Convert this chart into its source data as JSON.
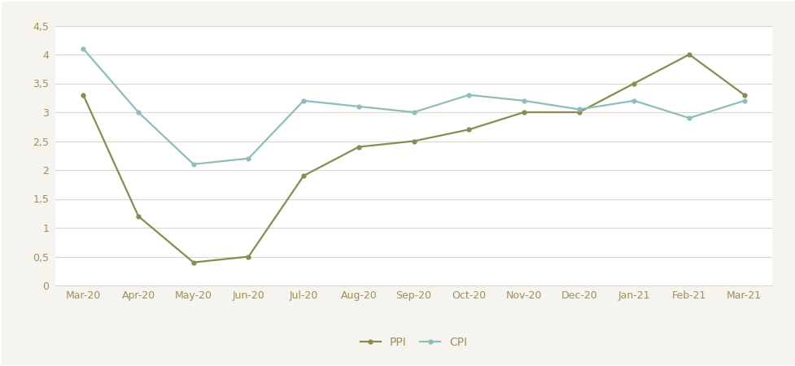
{
  "categories": [
    "Mar-20",
    "Apr-20",
    "May-20",
    "Jun-20",
    "Jul-20",
    "Aug-20",
    "Sep-20",
    "Oct-20",
    "Nov-20",
    "Dec-20",
    "Jan-21",
    "Feb-21",
    "Mar-21"
  ],
  "ppi": [
    3.3,
    1.2,
    0.4,
    0.5,
    1.9,
    2.4,
    2.5,
    2.7,
    3.0,
    3.0,
    3.5,
    4.0,
    3.3
  ],
  "cpi": [
    4.1,
    3.0,
    2.1,
    2.2,
    3.2,
    3.1,
    3.0,
    3.3,
    3.2,
    3.05,
    3.2,
    2.9,
    3.2
  ],
  "ppi_color": "#8B8A50",
  "cpi_color": "#8FBDBC",
  "ppi_label": "PPI",
  "cpi_label": "CPI",
  "ylim": [
    0,
    4.5
  ],
  "yticks": [
    0,
    0.5,
    1.0,
    1.5,
    2.0,
    2.5,
    3.0,
    3.5,
    4.0,
    4.5
  ],
  "ytick_labels": [
    "0",
    "0,5",
    "1",
    "1,5",
    "2",
    "2,5",
    "3",
    "3,5",
    "4",
    "4,5"
  ],
  "tick_color": "#9B9060",
  "background_color": "#ffffff",
  "figure_bg": "#f5f4ee",
  "grid_color": "#d8d8d0",
  "border_color": "#d8d8d0",
  "line_width": 1.6,
  "marker": "o",
  "marker_size": 4.5
}
